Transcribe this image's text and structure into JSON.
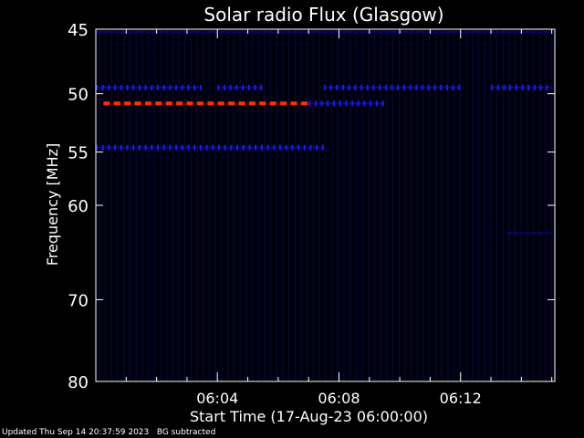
{
  "chart_data": {
    "type": "heatmap",
    "title": "Solar radio Flux (Glasgow)",
    "xlabel": "Start Time (17-Aug-23 06:00:00)",
    "ylabel": "Frequency [MHz]",
    "xlim_minutes_after_start": [
      0,
      15.1
    ],
    "ylim_mhz": [
      45,
      80
    ],
    "y_scale": "log",
    "y_ticks": [
      45,
      50,
      55,
      60,
      70,
      80
    ],
    "y_tick_labels": [
      "45",
      "50",
      "55",
      "60",
      "70",
      "80"
    ],
    "x_ticks": [
      "06:04",
      "06:08",
      "06:12"
    ],
    "background_color": "#000000",
    "colors": {
      "axis": "#ffffff",
      "low_flux": "#000040",
      "mid_flux": "#1a1aff",
      "high_flux": "#ff3300"
    },
    "bands": [
      {
        "frequency_mhz": 45.2,
        "from": "06:00",
        "to": "06:15",
        "intensity": "low"
      },
      {
        "frequency_mhz": 49.5,
        "from": "06:00",
        "to": "06:03:30",
        "intensity": "medium"
      },
      {
        "frequency_mhz": 49.5,
        "from": "06:04",
        "to": "06:05:30",
        "intensity": "medium"
      },
      {
        "frequency_mhz": 49.5,
        "from": "06:07:30",
        "to": "06:12",
        "intensity": "medium"
      },
      {
        "frequency_mhz": 49.5,
        "from": "06:13",
        "to": "06:15",
        "intensity": "medium"
      },
      {
        "frequency_mhz": 50.8,
        "from": "06:00:15",
        "to": "06:07",
        "intensity": "high"
      },
      {
        "frequency_mhz": 50.8,
        "from": "06:07",
        "to": "06:09:30",
        "intensity": "medium"
      },
      {
        "frequency_mhz": 54.6,
        "from": "06:00",
        "to": "06:07:30",
        "intensity": "medium"
      },
      {
        "frequency_mhz": 62.8,
        "from": "06:13:30",
        "to": "06:15",
        "intensity": "low"
      }
    ]
  },
  "footer": {
    "updated": "Updated Thu Sep 14 20:37:59 2023",
    "note": "BG subtracted"
  }
}
